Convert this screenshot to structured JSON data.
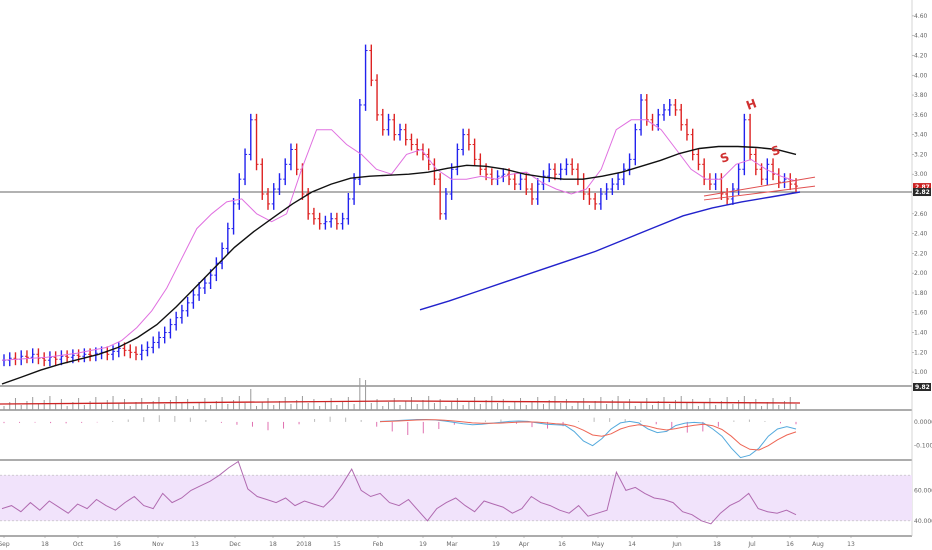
{
  "chart_data": {
    "type": "candlestick",
    "title": "",
    "price_ylim": [
      0.9,
      4.7
    ],
    "price_ticks": [
      "4.60",
      "4.40",
      "4.20",
      "4.00",
      "3.80",
      "3.60",
      "3.40",
      "3.20",
      "3.00",
      "2.80",
      "2.60",
      "2.40",
      "2.20",
      "2.00",
      "1.80",
      "1.60",
      "1.40",
      "1.20",
      "1.00"
    ],
    "price_badges": [
      "2.87",
      "2.82"
    ],
    "volume_badge": "9.82",
    "macd_ticks": [
      "0.0000",
      "-0.1000"
    ],
    "rsi_ticks": [
      "60.0000",
      "40.0000"
    ],
    "x_tick_labels": [
      "Sep",
      "18",
      "Oct",
      "16",
      "Nov",
      "13",
      "Dec",
      "18",
      "2018",
      "15",
      "Feb",
      "19",
      "Mar",
      "19",
      "Apr",
      "16",
      "May",
      "14",
      "Jun",
      "18",
      "Jul",
      "16",
      "Aug",
      "13"
    ],
    "price_series": [
      1.12,
      1.14,
      1.13,
      1.16,
      1.15,
      1.18,
      1.14,
      1.12,
      1.15,
      1.13,
      1.16,
      1.15,
      1.17,
      1.16,
      1.18,
      1.17,
      1.19,
      1.2,
      1.18,
      1.21,
      1.24,
      1.22,
      1.2,
      1.18,
      1.22,
      1.25,
      1.3,
      1.35,
      1.4,
      1.48,
      1.55,
      1.62,
      1.7,
      1.78,
      1.85,
      1.9,
      1.98,
      2.1,
      2.25,
      2.45,
      2.7,
      2.95,
      3.2,
      3.55,
      3.1,
      2.8,
      2.7,
      2.85,
      2.95,
      3.1,
      3.25,
      3.05,
      2.8,
      2.6,
      2.55,
      2.5,
      2.52,
      2.55,
      2.5,
      2.55,
      2.75,
      2.95,
      3.7,
      4.25,
      3.95,
      3.6,
      3.45,
      3.55,
      3.4,
      3.45,
      3.35,
      3.3,
      3.25,
      3.2,
      3.1,
      2.95,
      2.6,
      2.8,
      3.05,
      3.25,
      3.4,
      3.3,
      3.15,
      3.05,
      3.0,
      2.95,
      2.98,
      3.0,
      2.95,
      2.9,
      2.95,
      2.85,
      2.75,
      2.9,
      2.98,
      3.05,
      3.0,
      3.05,
      3.1,
      3.05,
      2.95,
      2.8,
      2.75,
      2.7,
      2.8,
      2.85,
      2.9,
      2.95,
      3.05,
      3.15,
      3.45,
      3.75,
      3.55,
      3.5,
      3.6,
      3.65,
      3.7,
      3.65,
      3.5,
      3.4,
      3.2,
      3.1,
      2.95,
      2.9,
      2.95,
      2.8,
      2.75,
      2.85,
      3.05,
      3.55,
      3.2,
      3.05,
      2.95,
      3.1,
      3.0,
      2.92,
      2.95,
      2.9,
      2.88
    ],
    "series": [
      {
        "name": "",
        "color": "#e070e0",
        "values": [
          1.12,
          1.13,
          1.14,
          1.15,
          1.17,
          1.19,
          1.22,
          1.25,
          1.32,
          1.45,
          1.62,
          1.85,
          2.15,
          2.45,
          2.6,
          2.72,
          2.75,
          2.6,
          2.52,
          2.6,
          3.05,
          3.45,
          3.45,
          3.3,
          3.2,
          3.05,
          3.0,
          3.2,
          3.25,
          3.05,
          2.95,
          2.95,
          2.98,
          2.95,
          3.0,
          3.02,
          2.92,
          2.85,
          2.8,
          2.85,
          3.05,
          3.45,
          3.55,
          3.55,
          3.45,
          3.25,
          3.05,
          2.95,
          2.95,
          3.1,
          3.15,
          3.05,
          2.98,
          2.93
        ]
      },
      {
        "name": "",
        "color": "#111111",
        "values": [
          0.88,
          0.95,
          1.02,
          1.08,
          1.13,
          1.18,
          1.25,
          1.35,
          1.48,
          1.66,
          1.86,
          2.06,
          2.26,
          2.42,
          2.56,
          2.7,
          2.82,
          2.9,
          2.96,
          2.98,
          2.99,
          3.0,
          3.02,
          3.06,
          3.09,
          3.08,
          3.05,
          3.0,
          2.97,
          2.95,
          2.95,
          2.98,
          3.02,
          3.08,
          3.14,
          3.21,
          3.26,
          3.28,
          3.28,
          3.27,
          3.25,
          3.2
        ]
      },
      {
        "name": "",
        "color": "#2222cc",
        "values": [
          1.63,
          1.72,
          1.82,
          1.92,
          2.02,
          2.12,
          2.22,
          2.34,
          2.46,
          2.58,
          2.66,
          2.72,
          2.77,
          2.82
        ]
      }
    ],
    "annotations": [
      "S",
      "H",
      "S"
    ],
    "rsi_ylim": [
      30,
      80
    ],
    "rsi_band": [
      40,
      70
    ],
    "rsi_values": [
      48,
      50,
      46,
      52,
      47,
      53,
      49,
      45,
      51,
      48,
      54,
      50,
      47,
      52,
      56,
      50,
      48,
      58,
      52,
      55,
      60,
      63,
      66,
      70,
      75,
      79,
      61,
      56,
      54,
      52,
      55,
      50,
      53,
      51,
      49,
      55,
      64,
      74,
      60,
      56,
      58,
      52,
      50,
      54,
      47,
      40,
      48,
      52,
      55,
      50,
      46,
      53,
      51,
      49,
      45,
      48,
      56,
      52,
      50,
      47,
      45,
      50,
      43,
      45,
      47,
      72,
      60,
      62,
      58,
      55,
      54,
      52,
      46,
      44,
      40,
      38,
      45,
      50,
      53,
      58,
      48,
      46,
      45,
      47,
      44
    ],
    "macd_ylim": [
      -0.16,
      0.05
    ],
    "macd_hist": [
      -0.005,
      -0.004,
      -0.003,
      -0.005,
      -0.006,
      -0.004,
      -0.002,
      0.004,
      0.01,
      0.02,
      0.028,
      0.025,
      0.018,
      0.008,
      -0.004,
      -0.012,
      -0.02,
      -0.035,
      -0.028,
      -0.01,
      0.012,
      0.022,
      0.018,
      0.008,
      -0.02,
      -0.04,
      -0.055,
      -0.048,
      -0.03,
      -0.012,
      -0.004,
      0.006,
      0.01,
      -0.008,
      -0.022,
      -0.028,
      -0.018,
      0.004,
      0.018,
      0.016,
      0.012,
      0.006,
      -0.01,
      -0.03,
      -0.045,
      -0.04,
      -0.02,
      0.006,
      0.01,
      0.004,
      -0.006,
      -0.01
    ],
    "macd_line": [
      0.002,
      0.004,
      0.006,
      0.008,
      0.01,
      0.01,
      0.008,
      0.004,
      -0.002,
      -0.008,
      -0.012,
      -0.01,
      -0.006,
      -0.002,
      0.002,
      0.004,
      0.002,
      -0.004,
      -0.01,
      -0.012,
      -0.014,
      -0.04,
      -0.08,
      -0.1,
      -0.07,
      -0.03,
      -0.004,
      0.002,
      -0.004,
      -0.03,
      -0.045,
      -0.04,
      -0.015,
      -0.005,
      -0.002,
      -0.005,
      -0.03,
      -0.06,
      -0.11,
      -0.15,
      -0.14,
      -0.11,
      -0.06,
      -0.03,
      -0.02,
      -0.03
    ],
    "signal_line": [
      0.001,
      0.002,
      0.004,
      0.006,
      0.008,
      0.009,
      0.009,
      0.007,
      0.004,
      0.0,
      -0.004,
      -0.006,
      -0.006,
      -0.005,
      -0.003,
      -0.001,
      0.0,
      -0.001,
      -0.004,
      -0.008,
      -0.01,
      -0.018,
      -0.035,
      -0.055,
      -0.06,
      -0.05,
      -0.03,
      -0.018,
      -0.012,
      -0.018,
      -0.028,
      -0.034,
      -0.028,
      -0.02,
      -0.014,
      -0.01,
      -0.016,
      -0.032,
      -0.06,
      -0.095,
      -0.115,
      -0.118,
      -0.1,
      -0.075,
      -0.055,
      -0.042
    ]
  },
  "colors": {
    "up": "#2222ee",
    "down": "#dd2222",
    "volume": "#9a9a9a",
    "volume_ma": "#cc2222",
    "macd": "#55aadd",
    "signal": "#ee6655",
    "rsi_line": "#b06ab0",
    "rsi_band_fill": "#f1e3fb",
    "badge": "#cc2222",
    "badge_dark": "#2a2a2a"
  }
}
